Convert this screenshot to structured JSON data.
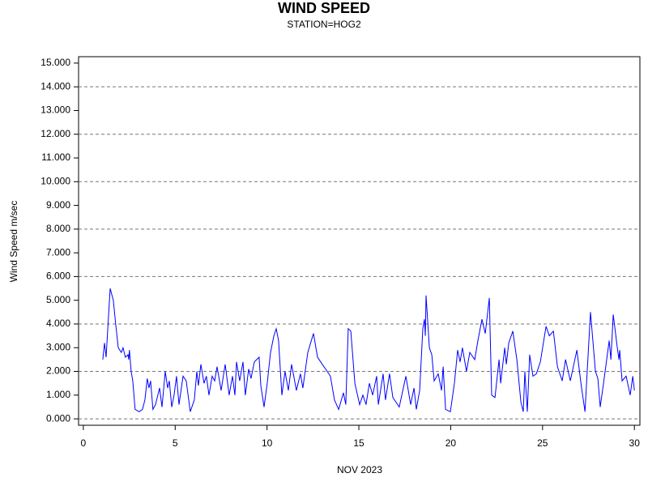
{
  "chart_data": {
    "type": "line",
    "title": "WIND SPEED",
    "subtitle": "STATION=HOG2",
    "x_label": "NOV 2023",
    "y_label": "Wind Speed m/sec",
    "xlim": [
      -0.26,
      30.3
    ],
    "ylim": [
      -0.27,
      15.27
    ],
    "xticks": [
      0,
      5,
      10,
      15,
      20,
      25,
      30
    ],
    "yticks": [
      {
        "value": 0,
        "label": "0.000"
      },
      {
        "value": 1,
        "label": "1.000"
      },
      {
        "value": 2,
        "label": "2.000"
      },
      {
        "value": 3,
        "label": "3.000"
      },
      {
        "value": 4,
        "label": "4.000"
      },
      {
        "value": 5,
        "label": "5.000"
      },
      {
        "value": 6,
        "label": "6.000"
      },
      {
        "value": 7,
        "label": "7.000"
      },
      {
        "value": 8,
        "label": "8.000"
      },
      {
        "value": 9,
        "label": "9.000"
      },
      {
        "value": 10,
        "label": "10.000"
      },
      {
        "value": 11,
        "label": "11.000"
      },
      {
        "value": 12,
        "label": "12.000"
      },
      {
        "value": 13,
        "label": "13.000"
      },
      {
        "value": 14,
        "label": "14.000"
      },
      {
        "value": 15,
        "label": "15.000"
      }
    ],
    "grid_values": [
      0,
      2,
      4,
      6,
      8,
      10,
      12,
      14
    ],
    "series": [
      {
        "color": "#0000ff",
        "x": [
          1.06,
          1.15,
          1.24,
          1.46,
          1.63,
          1.76,
          1.9,
          2.07,
          2.16,
          2.29,
          2.43,
          2.47,
          2.51,
          2.6,
          2.69,
          2.82,
          3.04,
          3.22,
          3.35,
          3.48,
          3.57,
          3.66,
          3.79,
          3.93,
          4.15,
          4.28,
          4.46,
          4.59,
          4.68,
          4.81,
          4.94,
          5.07,
          5.21,
          5.43,
          5.6,
          5.82,
          6.04,
          6.18,
          6.26,
          6.4,
          6.57,
          6.7,
          6.84,
          7.01,
          7.15,
          7.28,
          7.5,
          7.72,
          7.94,
          8.12,
          8.25,
          8.34,
          8.51,
          8.69,
          8.82,
          9.0,
          9.13,
          9.31,
          9.57,
          9.66,
          9.84,
          10.01,
          10.19,
          10.37,
          10.5,
          10.63,
          10.81,
          10.98,
          11.16,
          11.34,
          11.6,
          11.82,
          11.95,
          12.22,
          12.53,
          12.75,
          13.01,
          13.28,
          13.45,
          13.67,
          13.9,
          14.16,
          14.29,
          14.42,
          14.56,
          14.78,
          15.04,
          15.22,
          15.39,
          15.57,
          15.75,
          15.97,
          16.06,
          16.32,
          16.45,
          16.67,
          16.85,
          17.2,
          17.56,
          17.82,
          18.0,
          18.13,
          18.31,
          18.48,
          18.57,
          18.62,
          18.66,
          18.84,
          18.97,
          19.1,
          19.32,
          19.5,
          19.59,
          19.72,
          19.98,
          20.2,
          20.38,
          20.51,
          20.64,
          20.86,
          21.04,
          21.31,
          21.48,
          21.7,
          21.88,
          21.97,
          22.1,
          22.23,
          22.41,
          22.63,
          22.72,
          22.94,
          23.03,
          23.16,
          23.38,
          23.6,
          23.82,
          23.95,
          24.04,
          24.17,
          24.3,
          24.48,
          24.66,
          24.88,
          25.19,
          25.37,
          25.59,
          25.81,
          26.07,
          26.25,
          26.51,
          26.87,
          27.09,
          27.31,
          27.44,
          27.61,
          27.88,
          28.01,
          28.14,
          28.32,
          28.63,
          28.72,
          28.85,
          29.07,
          29.16,
          29.2,
          29.33,
          29.55,
          29.77,
          29.91,
          30.0
        ],
        "values": [
          2.5,
          3.2,
          2.6,
          5.5,
          5.0,
          4.0,
          3.0,
          2.8,
          3.0,
          2.6,
          2.7,
          2.5,
          2.9,
          2.0,
          1.6,
          0.4,
          0.3,
          0.4,
          0.8,
          1.7,
          1.3,
          1.6,
          0.4,
          0.6,
          1.3,
          0.5,
          2.0,
          1.3,
          1.6,
          0.5,
          1.0,
          1.8,
          0.6,
          1.8,
          1.6,
          0.3,
          0.8,
          2.0,
          1.4,
          2.3,
          1.5,
          1.8,
          1.0,
          1.8,
          1.6,
          2.2,
          1.2,
          2.3,
          1.0,
          1.8,
          1.0,
          2.4,
          1.6,
          2.4,
          1.0,
          2.1,
          1.7,
          2.4,
          2.6,
          1.4,
          0.5,
          1.5,
          2.8,
          3.5,
          3.8,
          3.3,
          1.0,
          2.0,
          1.2,
          2.3,
          1.2,
          1.9,
          1.3,
          2.8,
          3.6,
          2.6,
          2.3,
          2.0,
          1.8,
          0.8,
          0.4,
          1.1,
          0.6,
          3.8,
          3.7,
          1.5,
          0.6,
          1.0,
          0.6,
          1.5,
          1.0,
          1.8,
          0.6,
          1.9,
          0.8,
          1.9,
          0.9,
          0.5,
          1.8,
          0.6,
          1.3,
          0.4,
          1.2,
          3.8,
          4.2,
          3.5,
          5.2,
          3.0,
          2.7,
          1.6,
          1.9,
          1.2,
          2.2,
          0.4,
          0.3,
          1.5,
          2.9,
          2.4,
          3.0,
          2.0,
          2.8,
          2.5,
          3.3,
          4.2,
          3.6,
          4.2,
          5.1,
          1.0,
          0.9,
          2.5,
          1.5,
          3.0,
          2.3,
          3.2,
          3.7,
          2.5,
          0.7,
          0.3,
          2.0,
          0.3,
          2.7,
          1.8,
          1.9,
          2.4,
          3.9,
          3.5,
          3.7,
          2.2,
          1.6,
          2.5,
          1.6,
          2.9,
          1.5,
          0.3,
          2.1,
          4.5,
          2.0,
          1.7,
          0.5,
          1.5,
          3.3,
          2.5,
          4.4,
          3.0,
          2.5,
          2.9,
          1.6,
          1.8,
          1.0,
          1.8,
          1.2
        ]
      }
    ]
  }
}
